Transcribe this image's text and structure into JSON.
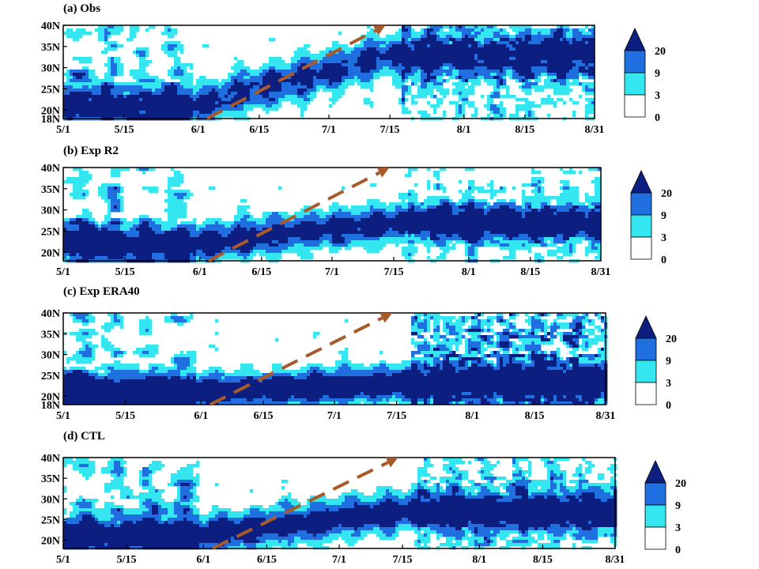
{
  "palette": {
    "light": "#33e6f0",
    "medium": "#1f6fe0",
    "dark": "#0c1f80",
    "arrow": "#a85a2a",
    "axis": "#000000",
    "background": "#ffffff"
  },
  "legend": {
    "levels": [
      "20",
      "9",
      "3",
      "0"
    ],
    "colors": [
      "#0c1f80",
      "#1f6fe0",
      "#33e6f0",
      "#ffffff"
    ]
  },
  "chart_data": [
    {
      "type": "heatmap",
      "title": "(a) Obs",
      "x_ticks": [
        "5/1",
        "5/15",
        "6/1",
        "6/15",
        "7/1",
        "7/15",
        "8/1",
        "8/15",
        "8/31"
      ],
      "y_ticks": [
        "18N",
        "20N",
        "25N",
        "30N",
        "35N",
        "40N"
      ],
      "ylim": [
        18,
        40
      ],
      "legend_levels": [
        0,
        3,
        9,
        20
      ],
      "arrow": {
        "from": [
          "6/3",
          18
        ],
        "to": [
          "7/14",
          40
        ]
      }
    },
    {
      "type": "heatmap",
      "title": "(b) Exp R2",
      "x_ticks": [
        "5/1",
        "5/15",
        "6/1",
        "6/15",
        "7/1",
        "7/15",
        "8/1",
        "8/15",
        "8/31"
      ],
      "y_ticks": [
        "20N",
        "25N",
        "30N",
        "35N",
        "40N"
      ],
      "ylim": [
        18,
        40
      ],
      "legend_levels": [
        0,
        3,
        9,
        20
      ],
      "arrow": {
        "from": [
          "6/3",
          18
        ],
        "to": [
          "7/14",
          40
        ]
      }
    },
    {
      "type": "heatmap",
      "title": "(c) Exp ERA40",
      "x_ticks": [
        "5/1",
        "5/15",
        "6/1",
        "6/15",
        "7/1",
        "7/15",
        "8/1",
        "8/15",
        "8/31"
      ],
      "y_ticks": [
        "18N",
        "20N",
        "25N",
        "30N",
        "35N",
        "40N"
      ],
      "ylim": [
        18,
        40
      ],
      "legend_levels": [
        0,
        3,
        9,
        20
      ],
      "arrow": {
        "from": [
          "6/3",
          18
        ],
        "to": [
          "7/14",
          40
        ]
      }
    },
    {
      "type": "heatmap",
      "title": "(d) CTL",
      "x_ticks": [
        "5/1",
        "5/15",
        "6/1",
        "6/15",
        "7/1",
        "7/15",
        "8/1",
        "8/15",
        "8/31"
      ],
      "y_ticks": [
        "20N",
        "25N",
        "30N",
        "35N",
        "40N"
      ],
      "ylim": [
        18,
        40
      ],
      "legend_levels": [
        0,
        3,
        9,
        20
      ],
      "arrow": {
        "from": [
          "6/3",
          18
        ],
        "to": [
          "7/14",
          40
        ]
      }
    }
  ]
}
